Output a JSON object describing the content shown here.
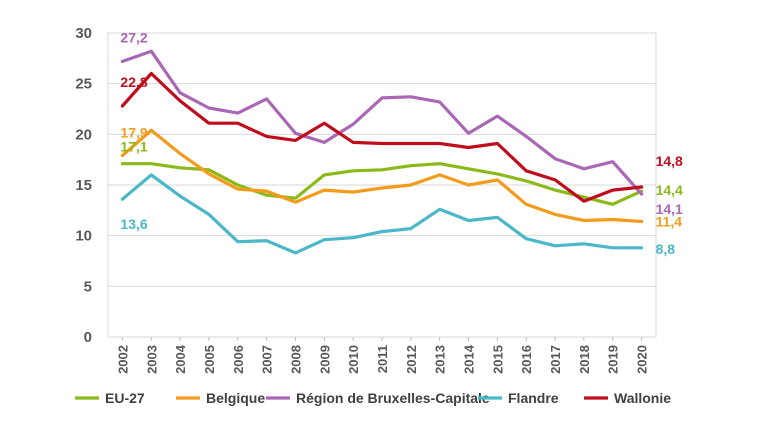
{
  "chart_data": {
    "type": "line",
    "title": "",
    "xlabel": "",
    "ylabel": "",
    "ylim": [
      0,
      30
    ],
    "yticks": [
      0,
      5,
      10,
      15,
      20,
      25,
      30
    ],
    "grid": true,
    "legend_position": "bottom",
    "categories": [
      "2002",
      "2003",
      "2004",
      "2005",
      "2006",
      "2007",
      "2008",
      "2009",
      "2010",
      "2011",
      "2012",
      "2013",
      "2014",
      "2015",
      "2016",
      "2017",
      "2018",
      "2019",
      "2020"
    ],
    "series": [
      {
        "name": "EU-27",
        "color": "#8cb91a",
        "values": [
          17.1,
          17.1,
          16.7,
          16.5,
          15.0,
          14.0,
          13.7,
          16.0,
          16.4,
          16.5,
          16.9,
          17.1,
          16.6,
          16.1,
          15.4,
          14.5,
          13.8,
          13.1,
          14.4
        ],
        "labels": [
          {
            "index": 0,
            "text": "17,1"
          },
          {
            "index": 18,
            "text": "14,4"
          }
        ]
      },
      {
        "name": "Belgique",
        "color": "#f39b1a",
        "values": [
          17.9,
          20.4,
          18.1,
          16.1,
          14.6,
          14.4,
          13.3,
          14.5,
          14.3,
          14.7,
          15.0,
          16.0,
          15.0,
          15.5,
          13.1,
          12.1,
          11.5,
          11.6,
          11.4
        ],
        "labels": [
          {
            "index": 0,
            "text": "17,9"
          },
          {
            "index": 18,
            "text": "11,4"
          }
        ]
      },
      {
        "name": "Région de Bruxelles-Capitale",
        "color": "#a967b5",
        "values": [
          27.2,
          28.2,
          24.1,
          22.6,
          22.1,
          23.5,
          20.1,
          19.2,
          21.0,
          23.6,
          23.7,
          23.2,
          20.1,
          21.8,
          19.8,
          17.6,
          16.6,
          17.3,
          14.1
        ],
        "labels": [
          {
            "index": 0,
            "text": "27,2"
          },
          {
            "index": 18,
            "text": "14,1"
          }
        ]
      },
      {
        "name": "Flandre",
        "color": "#4bb7c9",
        "values": [
          13.6,
          16.0,
          13.9,
          12.1,
          9.4,
          9.5,
          8.3,
          9.6,
          9.8,
          10.4,
          10.7,
          12.6,
          11.5,
          11.8,
          9.7,
          9.0,
          9.2,
          8.8,
          8.8
        ],
        "labels": [
          {
            "index": 0,
            "text": "13,6"
          },
          {
            "index": 18,
            "text": "8,8"
          }
        ]
      },
      {
        "name": "Wallonie",
        "color": "#c00d1e",
        "values": [
          22.8,
          26.0,
          23.3,
          21.1,
          21.1,
          19.8,
          19.4,
          21.1,
          19.2,
          19.1,
          19.1,
          19.1,
          18.7,
          19.1,
          16.4,
          15.5,
          13.4,
          14.5,
          14.8
        ],
        "labels": [
          {
            "index": 0,
            "text": "22,8"
          },
          {
            "index": 18,
            "text": "14,8"
          }
        ]
      }
    ]
  }
}
